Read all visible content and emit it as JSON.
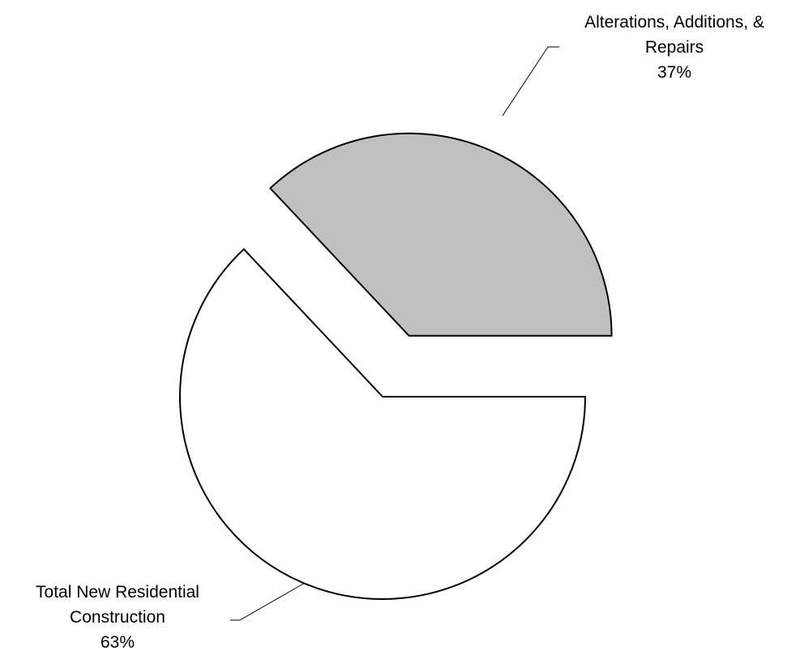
{
  "chart_data": {
    "type": "pie",
    "title": "",
    "slices": [
      {
        "label_lines": [
          "Alterations, Additions, &",
          "Repairs"
        ],
        "percent_label": "37%",
        "value": 37,
        "color": "#c0c0c0",
        "exploded": true
      },
      {
        "label_lines": [
          "Total New Residential",
          "Construction"
        ],
        "percent_label": "63%",
        "value": 63,
        "color": "#ffffff",
        "exploded": false
      }
    ],
    "start_angle_deg": 0,
    "direction": "counterclockwise",
    "legend": "none",
    "grid": false
  }
}
